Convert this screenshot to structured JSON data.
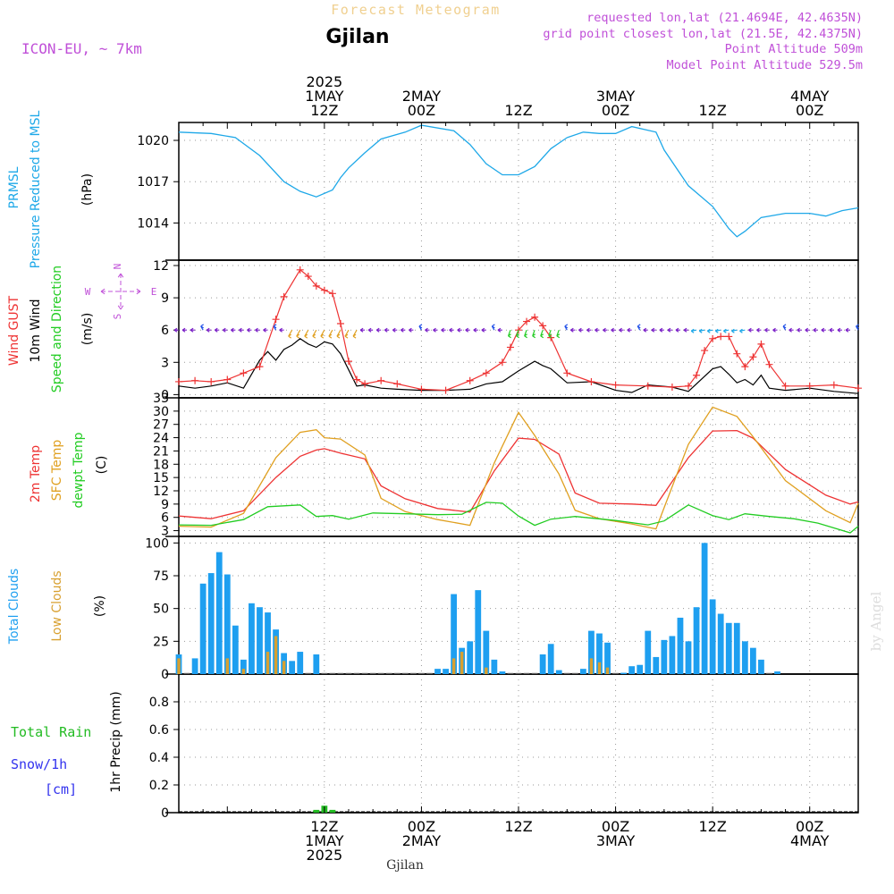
{
  "header": {
    "title": "Forecast Meteogram",
    "location": "Gjilan",
    "model": "ICON-EU, ~ 7km",
    "requested": "requested lon,lat (21.4694E, 42.4635N)",
    "closest": "grid point closest lon,lat (21.5E, 42.4375N)",
    "point_altitude": "Point Altitude 509m",
    "model_altitude": "Model Point Altitude 529.5m",
    "footer_location": "Gjilan",
    "watermark": "by Angel"
  },
  "time_axis": {
    "start": "2025-04-30T18:00Z",
    "end": "2025-05-04T06:00Z",
    "top_labels": [
      {
        "time": "2025-05-01T12:00Z",
        "lines": [
          "2025",
          "1MAY",
          "12Z"
        ]
      },
      {
        "time": "2025-05-02T00:00Z",
        "lines": [
          "2MAY",
          "00Z"
        ]
      },
      {
        "time": "2025-05-02T12:00Z",
        "lines": [
          "12Z"
        ]
      },
      {
        "time": "2025-05-03T00:00Z",
        "lines": [
          "3MAY",
          "00Z"
        ]
      },
      {
        "time": "2025-05-03T12:00Z",
        "lines": [
          "12Z"
        ]
      },
      {
        "time": "2025-05-04T00:00Z",
        "lines": [
          "4MAY",
          "00Z"
        ]
      }
    ],
    "bottom_labels": [
      {
        "time": "2025-05-01T12:00Z",
        "lines": [
          "12Z",
          "1MAY",
          "2025"
        ]
      },
      {
        "time": "2025-05-02T00:00Z",
        "lines": [
          "00Z",
          "2MAY"
        ]
      },
      {
        "time": "2025-05-02T12:00Z",
        "lines": [
          "12Z"
        ]
      },
      {
        "time": "2025-05-03T00:00Z",
        "lines": [
          "00Z",
          "3MAY"
        ]
      },
      {
        "time": "2025-05-03T12:00Z",
        "lines": [
          "12Z"
        ]
      },
      {
        "time": "2025-05-04T00:00Z",
        "lines": [
          "00Z",
          "4MAY"
        ]
      }
    ]
  },
  "colors": {
    "pressure": "#1ea8e8",
    "gust": "#ee3333",
    "wind": "#000000",
    "wind_arrow": "#7a1ec8",
    "temp_2m": "#ee3333",
    "temp_sfc": "#e0a020",
    "dewpoint": "#22cc22",
    "total_clouds": "#1e9ff0",
    "low_clouds": "#d8a030",
    "rain": "#22bb22",
    "snow": "#3333ee",
    "magenta_text": "#c050d8",
    "title_text": "#f0d090"
  },
  "chart_data": [
    {
      "type": "line",
      "panel": "pressure",
      "ylabel": [
        "PRMSL",
        "Pressure Reduced to MSL",
        "(hPa)"
      ],
      "ylim": [
        1011.3,
        1021.3
      ],
      "yticks": [
        "1014",
        "1017",
        "1020"
      ],
      "grid": true,
      "series": [
        {
          "name": "PRMSL",
          "x": [
            "2025-04-30T18:00Z",
            "2025-04-30T22:00Z",
            "2025-05-01T01:00Z",
            "2025-05-01T04:00Z",
            "2025-05-01T07:00Z",
            "2025-05-01T09:00Z",
            "2025-05-01T11:00Z",
            "2025-05-01T13:00Z",
            "2025-05-01T14:00Z",
            "2025-05-01T15:00Z",
            "2025-05-01T17:00Z",
            "2025-05-01T19:00Z",
            "2025-05-01T22:00Z",
            "2025-05-02T00:00Z",
            "2025-05-02T04:00Z",
            "2025-05-02T06:00Z",
            "2025-05-02T08:00Z",
            "2025-05-02T10:00Z",
            "2025-05-02T12:00Z",
            "2025-05-02T14:00Z",
            "2025-05-02T16:00Z",
            "2025-05-02T18:00Z",
            "2025-05-02T20:00Z",
            "2025-05-02T22:00Z",
            "2025-05-03T00:00Z",
            "2025-05-03T02:00Z",
            "2025-05-03T05:00Z",
            "2025-05-03T06:00Z",
            "2025-05-03T09:00Z",
            "2025-05-03T12:00Z",
            "2025-05-03T14:00Z",
            "2025-05-03T15:00Z",
            "2025-05-03T16:00Z",
            "2025-05-03T18:00Z",
            "2025-05-03T21:00Z",
            "2025-05-04T00:00Z",
            "2025-05-04T02:00Z",
            "2025-05-04T04:00Z",
            "2025-05-04T06:00Z"
          ],
          "values": [
            1020.6,
            1020.5,
            1020.2,
            1018.9,
            1017.0,
            1016.3,
            1015.9,
            1016.4,
            1017.3,
            1018.0,
            1019.1,
            1020.1,
            1020.6,
            1021.1,
            1020.7,
            1019.7,
            1018.3,
            1017.5,
            1017.5,
            1018.1,
            1019.4,
            1020.2,
            1020.6,
            1020.5,
            1020.5,
            1021.0,
            1020.6,
            1019.3,
            1016.7,
            1015.2,
            1013.6,
            1013.0,
            1013.4,
            1014.4,
            1014.7,
            1014.7,
            1014.5,
            1014.9,
            1015.1
          ]
        }
      ]
    },
    {
      "type": "line",
      "panel": "wind",
      "ylabel": [
        "Wind GUST",
        "10m Wind",
        "Speed and Direction",
        "(m/s)"
      ],
      "ylim": [
        -0.3,
        12.5
      ],
      "yticks": [
        "0",
        "3",
        "6",
        "9",
        "12"
      ],
      "compass": [
        "N",
        "S",
        "W",
        "E"
      ],
      "grid": true,
      "series": [
        {
          "name": "Wind GUST",
          "x": [
            "2025-04-30T18:00Z",
            "2025-04-30T20:00Z",
            "2025-04-30T22:00Z",
            "2025-05-01T00:00Z",
            "2025-05-01T02:00Z",
            "2025-05-01T04:00Z",
            "2025-05-01T06:00Z",
            "2025-05-01T07:00Z",
            "2025-05-01T09:00Z",
            "2025-05-01T10:00Z",
            "2025-05-01T11:00Z",
            "2025-05-01T12:00Z",
            "2025-05-01T13:00Z",
            "2025-05-01T14:00Z",
            "2025-05-01T15:00Z",
            "2025-05-01T16:00Z",
            "2025-05-01T17:00Z",
            "2025-05-01T19:00Z",
            "2025-05-01T21:00Z",
            "2025-05-02T00:00Z",
            "2025-05-02T03:00Z",
            "2025-05-02T06:00Z",
            "2025-05-02T08:00Z",
            "2025-05-02T10:00Z",
            "2025-05-02T11:00Z",
            "2025-05-02T12:00Z",
            "2025-05-02T13:00Z",
            "2025-05-02T14:00Z",
            "2025-05-02T15:00Z",
            "2025-05-02T16:00Z",
            "2025-05-02T18:00Z",
            "2025-05-02T21:00Z",
            "2025-05-03T00:00Z",
            "2025-05-03T04:00Z",
            "2025-05-03T07:00Z",
            "2025-05-03T09:00Z",
            "2025-05-03T10:00Z",
            "2025-05-03T11:00Z",
            "2025-05-03T12:00Z",
            "2025-05-03T13:00Z",
            "2025-05-03T14:00Z",
            "2025-05-03T15:00Z",
            "2025-05-03T16:00Z",
            "2025-05-03T17:00Z",
            "2025-05-03T18:00Z",
            "2025-05-03T19:00Z",
            "2025-05-03T21:00Z",
            "2025-05-04T00:00Z",
            "2025-05-04T03:00Z",
            "2025-05-04T06:00Z"
          ],
          "values": [
            1.2,
            1.3,
            1.2,
            1.4,
            2.0,
            2.6,
            7.0,
            9.1,
            11.6,
            11.0,
            10.1,
            9.7,
            9.4,
            6.6,
            3.1,
            1.4,
            1.0,
            1.3,
            1.0,
            0.5,
            0.4,
            1.3,
            2.0,
            3.0,
            4.4,
            6.0,
            6.8,
            7.2,
            6.4,
            5.3,
            2.0,
            1.2,
            0.9,
            0.8,
            0.7,
            0.8,
            1.8,
            4.1,
            5.2,
            5.4,
            5.4,
            3.8,
            2.6,
            3.5,
            4.7,
            2.8,
            0.8,
            0.8,
            0.9,
            0.6
          ]
        },
        {
          "name": "10m Wind",
          "x": [
            "2025-04-30T18:00Z",
            "2025-04-30T20:00Z",
            "2025-04-30T22:00Z",
            "2025-05-01T00:00Z",
            "2025-05-01T02:00Z",
            "2025-05-01T04:00Z",
            "2025-05-01T05:00Z",
            "2025-05-01T06:00Z",
            "2025-05-01T07:00Z",
            "2025-05-01T08:00Z",
            "2025-05-01T09:00Z",
            "2025-05-01T10:00Z",
            "2025-05-01T11:00Z",
            "2025-05-01T12:00Z",
            "2025-05-01T13:00Z",
            "2025-05-01T14:00Z",
            "2025-05-01T15:00Z",
            "2025-05-01T16:00Z",
            "2025-05-01T17:00Z",
            "2025-05-01T19:00Z",
            "2025-05-01T21:00Z",
            "2025-05-02T00:00Z",
            "2025-05-02T03:00Z",
            "2025-05-02T06:00Z",
            "2025-05-02T08:00Z",
            "2025-05-02T10:00Z",
            "2025-05-02T12:00Z",
            "2025-05-02T14:00Z",
            "2025-05-02T15:00Z",
            "2025-05-02T16:00Z",
            "2025-05-02T18:00Z",
            "2025-05-02T21:00Z",
            "2025-05-03T00:00Z",
            "2025-05-03T02:00Z",
            "2025-05-03T04:00Z",
            "2025-05-03T07:00Z",
            "2025-05-03T09:00Z",
            "2025-05-03T12:00Z",
            "2025-05-03T13:00Z",
            "2025-05-03T14:00Z",
            "2025-05-03T15:00Z",
            "2025-05-03T16:00Z",
            "2025-05-03T17:00Z",
            "2025-05-03T18:00Z",
            "2025-05-03T19:00Z",
            "2025-05-03T21:00Z",
            "2025-05-04T00:00Z",
            "2025-05-04T03:00Z",
            "2025-05-04T06:00Z"
          ],
          "values": [
            0.8,
            0.6,
            0.8,
            1.1,
            0.6,
            3.2,
            4.0,
            3.2,
            4.2,
            4.6,
            5.2,
            4.7,
            4.4,
            4.9,
            4.7,
            3.8,
            2.3,
            0.8,
            0.9,
            0.6,
            0.5,
            0.4,
            0.4,
            0.5,
            1.0,
            1.2,
            2.2,
            3.1,
            2.7,
            2.4,
            1.1,
            1.2,
            0.4,
            0.2,
            0.9,
            0.7,
            0.3,
            2.4,
            2.6,
            1.9,
            1.1,
            1.4,
            0.9,
            1.8,
            0.6,
            0.4,
            0.6,
            0.3,
            0.1
          ]
        }
      ],
      "arrow_colors": [
        "#7a1ec8",
        "#e0a020",
        "#22cc22",
        "#1ea8e8",
        "#2050e8"
      ]
    },
    {
      "type": "line",
      "panel": "temperature",
      "ylabel": [
        "2m Temp",
        "SFC Temp",
        "dewpt Temp",
        "(C)"
      ],
      "ylim": [
        1.7,
        33
      ],
      "yticks": [
        "3",
        "6",
        "9",
        "12",
        "15",
        "18",
        "21",
        "24",
        "27",
        "30",
        "33"
      ],
      "grid": true,
      "series": [
        {
          "name": "2m Temp",
          "x": [
            "2025-04-30T18:00Z",
            "2025-04-30T22:00Z",
            "2025-05-01T02:00Z",
            "2025-05-01T06:00Z",
            "2025-05-01T09:00Z",
            "2025-05-01T11:00Z",
            "2025-05-01T12:00Z",
            "2025-05-01T14:00Z",
            "2025-05-01T17:00Z",
            "2025-05-01T19:00Z",
            "2025-05-01T22:00Z",
            "2025-05-02T02:00Z",
            "2025-05-02T06:00Z",
            "2025-05-02T09:00Z",
            "2025-05-02T12:00Z",
            "2025-05-02T14:00Z",
            "2025-05-02T17:00Z",
            "2025-05-02T19:00Z",
            "2025-05-02T22:00Z",
            "2025-05-03T02:00Z",
            "2025-05-03T05:00Z",
            "2025-05-03T09:00Z",
            "2025-05-03T12:00Z",
            "2025-05-03T15:00Z",
            "2025-05-03T17:00Z",
            "2025-05-03T21:00Z",
            "2025-05-04T02:00Z",
            "2025-05-04T05:00Z",
            "2025-05-04T06:00Z"
          ],
          "values": [
            6.3,
            5.7,
            7.5,
            15.0,
            19.8,
            21.2,
            21.5,
            20.5,
            19.2,
            13.1,
            10.2,
            8.0,
            7.2,
            16.5,
            23.9,
            23.6,
            20.3,
            11.5,
            9.2,
            9.0,
            8.7,
            19.5,
            25.5,
            25.6,
            23.9,
            16.8,
            11.0,
            9.0,
            9.5
          ]
        },
        {
          "name": "SFC Temp",
          "x": [
            "2025-04-30T18:00Z",
            "2025-04-30T22:00Z",
            "2025-05-01T02:00Z",
            "2025-05-01T06:00Z",
            "2025-05-01T09:00Z",
            "2025-05-01T11:00Z",
            "2025-05-01T12:00Z",
            "2025-05-01T14:00Z",
            "2025-05-01T17:00Z",
            "2025-05-01T19:00Z",
            "2025-05-01T22:00Z",
            "2025-05-02T02:00Z",
            "2025-05-02T06:00Z",
            "2025-05-02T09:00Z",
            "2025-05-02T12:00Z",
            "2025-05-02T14:00Z",
            "2025-05-02T17:00Z",
            "2025-05-02T19:00Z",
            "2025-05-02T22:00Z",
            "2025-05-03T02:00Z",
            "2025-05-03T05:00Z",
            "2025-05-03T09:00Z",
            "2025-05-03T12:00Z",
            "2025-05-03T15:00Z",
            "2025-05-03T17:00Z",
            "2025-05-03T21:00Z",
            "2025-05-04T02:00Z",
            "2025-05-04T05:00Z",
            "2025-05-04T06:00Z"
          ],
          "values": [
            4.0,
            3.8,
            6.9,
            19.5,
            25.2,
            25.8,
            24.0,
            23.7,
            20.1,
            10.3,
            7.3,
            5.5,
            4.2,
            18.3,
            29.7,
            24.5,
            15.8,
            7.6,
            5.7,
            4.5,
            3.4,
            22.5,
            30.9,
            28.8,
            24.2,
            14.3,
            7.5,
            4.8,
            9.2
          ]
        },
        {
          "name": "dewpt Temp",
          "x": [
            "2025-04-30T18:00Z",
            "2025-04-30T22:00Z",
            "2025-05-01T02:00Z",
            "2025-05-01T05:00Z",
            "2025-05-01T07:00Z",
            "2025-05-01T09:00Z",
            "2025-05-01T11:00Z",
            "2025-05-01T13:00Z",
            "2025-05-01T15:00Z",
            "2025-05-01T18:00Z",
            "2025-05-01T22:00Z",
            "2025-05-02T02:00Z",
            "2025-05-02T05:00Z",
            "2025-05-02T08:00Z",
            "2025-05-02T10:00Z",
            "2025-05-02T12:00Z",
            "2025-05-02T14:00Z",
            "2025-05-02T16:00Z",
            "2025-05-02T19:00Z",
            "2025-05-03T00:00Z",
            "2025-05-03T04:00Z",
            "2025-05-03T06:00Z",
            "2025-05-03T09:00Z",
            "2025-05-03T12:00Z",
            "2025-05-03T14:00Z",
            "2025-05-03T16:00Z",
            "2025-05-03T19:00Z",
            "2025-05-03T22:00Z",
            "2025-05-04T01:00Z",
            "2025-05-04T05:00Z",
            "2025-05-04T06:00Z"
          ],
          "values": [
            4.3,
            4.2,
            5.5,
            8.4,
            8.6,
            8.8,
            6.2,
            6.4,
            5.6,
            7.0,
            6.8,
            6.6,
            6.7,
            9.4,
            9.2,
            6.3,
            4.2,
            5.6,
            6.2,
            5.3,
            4.3,
            5.2,
            8.8,
            6.4,
            5.5,
            6.8,
            6.2,
            5.7,
            4.7,
            2.5,
            4.0
          ]
        }
      ]
    },
    {
      "type": "bar",
      "panel": "clouds",
      "ylabel": [
        "Total Clouds",
        "Low Clouds",
        "(%)"
      ],
      "ylim": [
        0,
        105
      ],
      "yticks": [
        "0",
        "25",
        "50",
        "75",
        "100"
      ],
      "grid": true,
      "series": [
        {
          "name": "Total Clouds",
          "x_start": "2025-04-30T18:00Z",
          "step_hours": 1,
          "values": [
            15,
            0,
            12,
            69,
            77,
            93,
            76,
            37,
            11,
            54,
            51,
            47,
            34,
            16,
            10,
            17,
            0,
            15,
            0,
            0,
            0,
            0,
            0,
            0,
            0,
            0,
            0,
            0,
            0,
            0,
            0,
            0,
            4,
            4,
            61,
            20,
            25,
            64,
            33,
            11,
            2,
            0,
            0,
            0,
            0,
            15,
            23,
            3,
            0,
            0,
            4,
            33,
            31,
            24,
            0,
            1,
            6,
            7,
            33,
            13,
            26,
            29,
            43,
            25,
            51,
            100,
            57,
            46,
            39,
            39,
            25,
            20,
            11,
            0,
            2
          ]
        },
        {
          "name": "Low Clouds",
          "x_start": "2025-04-30T18:00Z",
          "step_hours": 1,
          "values": [
            12,
            0,
            0,
            0,
            0,
            0,
            12,
            0,
            4,
            0,
            0,
            17,
            29,
            10,
            0,
            0,
            0,
            0,
            0,
            0,
            0,
            0,
            0,
            0,
            0,
            0,
            0,
            0,
            0,
            0,
            0,
            0,
            0,
            0,
            12,
            17,
            0,
            0,
            5,
            0,
            0,
            0,
            0,
            0,
            0,
            0,
            0,
            0,
            0,
            0,
            0,
            12,
            9,
            5,
            0,
            0,
            0,
            0,
            0,
            0,
            0,
            0,
            0,
            0,
            0,
            0,
            0,
            0,
            0,
            0,
            0,
            0,
            0,
            0,
            0
          ]
        }
      ]
    },
    {
      "type": "bar",
      "panel": "precip",
      "ylabel": [
        "Total Rain",
        "Snow/1h",
        "[cm]",
        "1hr Precip (mm)"
      ],
      "ylim": [
        0,
        1.0
      ],
      "yticks": [
        "0",
        "0.2",
        "0.4",
        "0.6",
        "0.8"
      ],
      "grid": true,
      "series": [
        {
          "name": "Total Rain",
          "x": [
            "2025-05-01T11:00Z",
            "2025-05-01T12:00Z",
            "2025-05-01T13:00Z"
          ],
          "values": [
            0.02,
            0.05,
            0.02
          ]
        }
      ]
    }
  ]
}
